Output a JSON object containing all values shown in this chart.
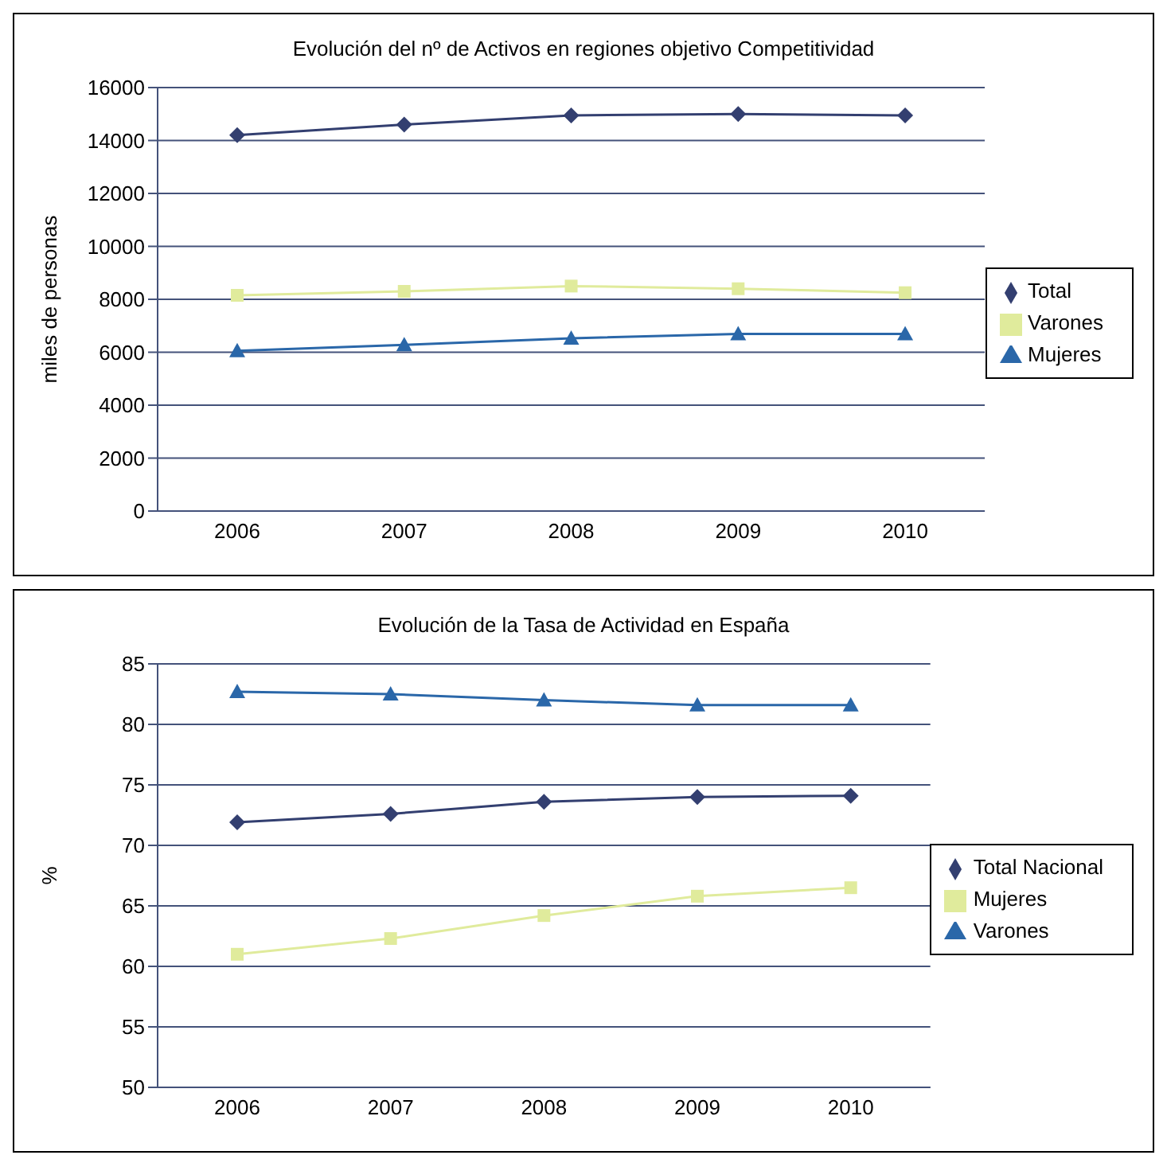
{
  "chart_data": [
    {
      "type": "line",
      "title": "Evolución del nº de Activos en regiones objetivo Competitividad",
      "ylabel": "miles de personas",
      "categories": [
        "2006",
        "2007",
        "2008",
        "2009",
        "2010"
      ],
      "ylim": [
        0,
        16000
      ],
      "yticks": [
        0,
        2000,
        4000,
        6000,
        8000,
        10000,
        12000,
        14000,
        16000
      ],
      "grid": "y",
      "legend": "right",
      "series": [
        {
          "name": "Total",
          "color": "#333f70",
          "marker": "diamond",
          "values": [
            14200,
            14600,
            14950,
            15000,
            14950
          ]
        },
        {
          "name": "Varones",
          "color": "#e0eb9c",
          "marker": "square",
          "values": [
            8150,
            8300,
            8500,
            8400,
            8250
          ]
        },
        {
          "name": "Mujeres",
          "color": "#2a67a9",
          "marker": "triangle",
          "values": [
            6050,
            6280,
            6530,
            6690,
            6690
          ]
        }
      ]
    },
    {
      "type": "line",
      "title": "Evolución de la Tasa de Actividad en España",
      "ylabel": "%",
      "categories": [
        "2006",
        "2007",
        "2008",
        "2009",
        "2010"
      ],
      "ylim": [
        50,
        85
      ],
      "yticks": [
        50,
        55,
        60,
        65,
        70,
        75,
        80,
        85
      ],
      "grid": "y",
      "legend": "right",
      "series": [
        {
          "name": "Total Nacional",
          "color": "#333f70",
          "marker": "diamond",
          "values": [
            71.9,
            72.6,
            73.6,
            74.0,
            74.1
          ]
        },
        {
          "name": "Mujeres",
          "color": "#e0eb9c",
          "marker": "square",
          "values": [
            61.0,
            62.3,
            64.2,
            65.8,
            66.5
          ]
        },
        {
          "name": "Varones",
          "color": "#2a67a9",
          "marker": "triangle",
          "values": [
            82.7,
            82.5,
            82.0,
            81.6,
            81.6
          ]
        }
      ]
    }
  ]
}
